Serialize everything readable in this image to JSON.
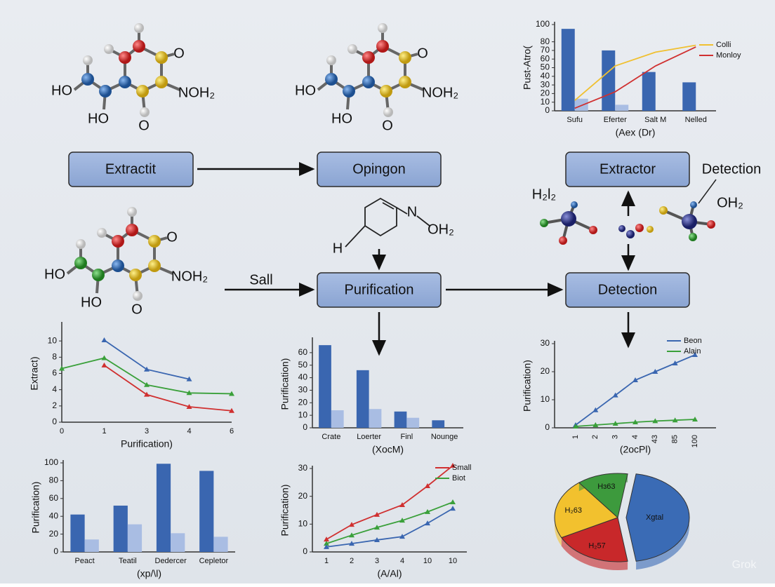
{
  "flow": {
    "boxes": [
      "Extractit",
      "Opingon",
      "Extractor",
      "Purification",
      "Detection"
    ],
    "edge_label": "Sall",
    "side_label": "Detection",
    "side_formulas": [
      "H₂l₂",
      "OH₂"
    ]
  },
  "molecules": [
    {
      "labels": [
        "O",
        "HO",
        "NOH₂",
        "HO",
        "O"
      ]
    },
    {
      "labels": [
        "O",
        "HO",
        "NOH₂",
        "HO",
        "O"
      ]
    },
    {
      "labels": [
        "O",
        "HO",
        "NOH₂",
        "HO",
        "O"
      ]
    }
  ],
  "structure": {
    "labels": [
      "N",
      "OH₂",
      "H"
    ]
  },
  "watermark": "Grok",
  "chart_data": [
    {
      "type": "bar",
      "ylabel": "Pust-Atro(",
      "xlabel": "(Aex (Dr)",
      "categories": [
        "Sufu",
        "Eferter",
        "Salt M",
        "Nelled"
      ],
      "ylim": [
        0,
        100
      ],
      "yticks": [
        0,
        10,
        20,
        30,
        40,
        50,
        60,
        70,
        80,
        100
      ],
      "legend": "upper right",
      "series": [
        {
          "color": "#3a66b0",
          "values": [
            95,
            70,
            45,
            33
          ]
        },
        {
          "color": "#a9bde3",
          "values": [
            14,
            7,
            null,
            null
          ]
        },
        {
          "name": "Colli",
          "type": "line",
          "color": "#f0c030",
          "values": [
            12,
            52,
            68,
            76
          ]
        },
        {
          "name": "Monloy",
          "type": "line",
          "color": "#d03030",
          "values": [
            3,
            22,
            52,
            74
          ]
        }
      ]
    },
    {
      "type": "line",
      "ylabel": "Extract)",
      "xlabel": "Purification)",
      "categories": [
        "0",
        "1",
        "3",
        "4",
        "6"
      ],
      "ylim": [
        0,
        12
      ],
      "yticks": [
        0,
        2,
        4,
        6,
        8,
        10
      ],
      "series": [
        {
          "color": "#3a66b0",
          "values": [
            null,
            10.1,
            6.5,
            5.3,
            null
          ]
        },
        {
          "color": "#3aa03a",
          "values": [
            6.6,
            7.9,
            4.6,
            3.6,
            3.5
          ]
        },
        {
          "color": "#d03030",
          "values": [
            null,
            7,
            3.4,
            1.9,
            1.4
          ]
        }
      ]
    },
    {
      "type": "bar",
      "ylabel": "Purification)",
      "xlabel": "(XocM)",
      "categories": [
        "Crate",
        "Loerter",
        "Finl",
        "Nounge"
      ],
      "ylim": [
        0,
        70
      ],
      "yticks": [
        0,
        10,
        20,
        30,
        40,
        50,
        60
      ],
      "series": [
        {
          "color": "#3a66b0",
          "values": [
            66,
            46,
            13,
            6
          ]
        },
        {
          "color": "#a9bde3",
          "values": [
            14,
            15,
            8,
            null
          ]
        }
      ]
    },
    {
      "type": "line",
      "ylabel": "Purification)",
      "xlabel": "(2ocPl)",
      "categories": [
        "1",
        "2",
        "3",
        "4",
        "43",
        "85",
        "100"
      ],
      "ylim": [
        0,
        30
      ],
      "yticks": [
        0,
        10,
        20,
        30
      ],
      "legend": "upper right",
      "series": [
        {
          "name": "Beon",
          "color": "#3a66b0",
          "values": [
            1,
            6.3,
            11.6,
            17,
            20,
            23,
            26
          ]
        },
        {
          "name": "Alain",
          "color": "#3aa03a",
          "values": [
            0.5,
            1,
            1.5,
            2,
            2.4,
            2.7,
            3
          ]
        }
      ]
    },
    {
      "type": "bar",
      "ylabel": "Purification)",
      "xlabel": "(xp/\\l)",
      "categories": [
        "Peact",
        "Teatil",
        "Dedercer",
        "Cepletor"
      ],
      "ylim": [
        0,
        100
      ],
      "yticks": [
        0,
        20,
        40,
        60,
        80,
        100
      ],
      "series": [
        {
          "color": "#3a66b0",
          "values": [
            42,
            52,
            99,
            91
          ]
        },
        {
          "color": "#a9bde3",
          "values": [
            14,
            31,
            21,
            17
          ]
        }
      ]
    },
    {
      "type": "line",
      "ylabel": "Purification)",
      "xlabel": "(A/Al)",
      "categories": [
        "1",
        "2",
        "3",
        "4",
        "10",
        "10"
      ],
      "ylim": [
        0,
        30
      ],
      "yticks": [
        0,
        10,
        20,
        30
      ],
      "legend": "upper right",
      "series": [
        {
          "name": "Small",
          "color": "#d03030",
          "values": [
            4.5,
            9.8,
            13.4,
            16.9,
            23.7,
            31
          ]
        },
        {
          "name": "Biot",
          "color": "#3aa03a",
          "values": [
            3,
            6,
            8.8,
            11.3,
            14.4,
            17.9
          ]
        },
        {
          "color": "#3a66b0",
          "values": [
            1.8,
            3,
            4.3,
            5.5,
            10.3,
            15.6
          ]
        }
      ]
    },
    {
      "type": "pie",
      "categories": [
        "Xgtal",
        "H₂57",
        "H₂63",
        "Hɜ63"
      ],
      "values": [
        45,
        20,
        22,
        13
      ],
      "colors": [
        "#3a6bb5",
        "#c8282a",
        "#f2c12e",
        "#3d9a3d"
      ]
    }
  ]
}
